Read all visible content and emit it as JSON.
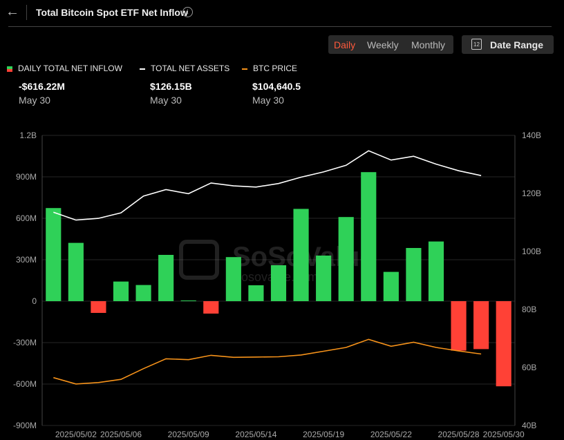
{
  "header": {
    "title": "Total Bitcoin Spot ETF Net Inflow",
    "info_icon": "i"
  },
  "toolbar": {
    "tabs": [
      "Daily",
      "Weekly",
      "Monthly"
    ],
    "active_tab": "Daily",
    "date_range_label": "Date Range",
    "calendar_day": "12"
  },
  "legend": [
    {
      "label": "DAILY TOTAL NET INFLOW",
      "value": "-$616.22M",
      "date": "May 30",
      "color": "#2fd158",
      "color2": "#ff4136"
    },
    {
      "label": "TOTAL NET ASSETS",
      "value": "$126.15B",
      "date": "May 30",
      "color": "#ffffff"
    },
    {
      "label": "BTC PRICE",
      "value": "$104,640.5",
      "date": "May 30",
      "color": "#f7931a"
    }
  ],
  "watermark": {
    "brand": "SoSoValue",
    "url": "sosovalue.com"
  },
  "chart_data": {
    "type": "bar",
    "x": [
      "2025/05/01",
      "2025/05/02",
      "2025/05/05",
      "2025/05/06",
      "2025/05/07",
      "2025/05/08",
      "2025/05/09",
      "2025/05/12",
      "2025/05/13",
      "2025/05/14",
      "2025/05/15",
      "2025/05/16",
      "2025/05/19",
      "2025/05/20",
      "2025/05/21",
      "2025/05/22",
      "2025/05/23",
      "2025/05/27",
      "2025/05/28",
      "2025/05/29",
      "2025/05/30"
    ],
    "x_tick_labels": [
      "2025/05/02",
      "2025/05/06",
      "2025/05/09",
      "2025/05/14",
      "2025/05/19",
      "2025/05/22",
      "2025/05/28",
      "2025/05/30"
    ],
    "x_tick_indices": [
      1,
      3,
      6,
      9,
      12,
      15,
      18,
      20
    ],
    "series": [
      {
        "name": "DAILY TOTAL NET INFLOW",
        "axis": "left",
        "type": "bar",
        "values": [
          674,
          422,
          -85,
          142,
          117,
          335,
          5,
          -90,
          319,
          115,
          260,
          668,
          330,
          609,
          934,
          212,
          385,
          432,
          -358,
          -347,
          -616.22
        ]
      },
      {
        "name": "TOTAL NET ASSETS",
        "axis": "right",
        "type": "line",
        "values": [
          113.5,
          110.8,
          111.4,
          113.3,
          119.1,
          121.3,
          119.9,
          123.6,
          122.6,
          122.2,
          123.4,
          125.6,
          127.4,
          129.7,
          134.7,
          131.5,
          132.8,
          130.1,
          127.8,
          126.15,
          null
        ]
      },
      {
        "name": "BTC PRICE",
        "axis": "right2",
        "type": "line",
        "values": [
          96500,
          94300,
          94800,
          95900,
          99600,
          103000,
          102700,
          104200,
          103500,
          103600,
          103700,
          104300,
          105600,
          106900,
          109700,
          107300,
          108700,
          106900,
          105700,
          104640.5,
          null
        ]
      }
    ],
    "y_left": {
      "ticks": [
        "1.2B",
        "900M",
        "600M",
        "300M",
        "0",
        "-300M",
        "-600M",
        "-900M"
      ],
      "range": [
        -900,
        1200
      ],
      "unit": "M"
    },
    "y_right": {
      "ticks": [
        "140B",
        "120B",
        "100B",
        "80B",
        "60B",
        "40B"
      ],
      "range": [
        40,
        140
      ],
      "unit": "B"
    },
    "grid": true
  }
}
